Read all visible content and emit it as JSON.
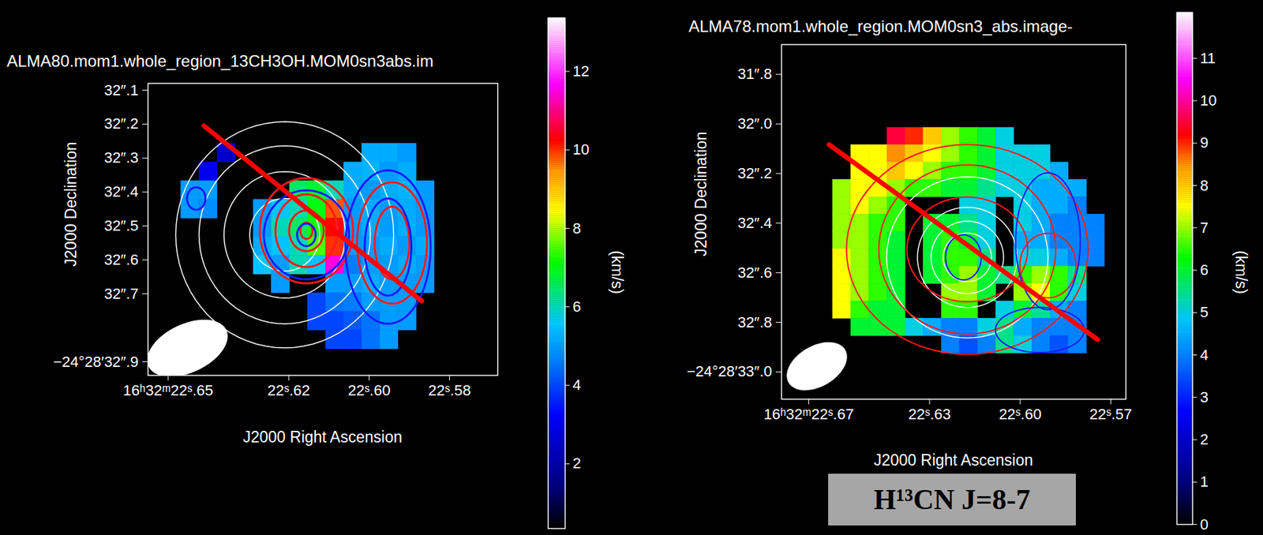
{
  "chart_data": [
    {
      "type": "heatmap",
      "title": "ALMA80.mom1.whole_region_13CH3OH.MOM0sn3abs.im",
      "x_label": "J2000 Right Ascension",
      "y_label": "J2000 Declination",
      "xlim": [
        22.568,
        22.655
      ],
      "xticks": [
        {
          "value": 22.65,
          "label": "16ʰ32ᵐ22ˢ.65"
        },
        {
          "value": 22.62,
          "label": "22ˢ.62"
        },
        {
          "value": 22.6,
          "label": "22ˢ.60"
        },
        {
          "value": 22.58,
          "label": "22ˢ.58"
        }
      ],
      "ylim": [
        32.08,
        32.94
      ],
      "yticks": [
        {
          "value": 32.1,
          "label": "32″.1"
        },
        {
          "value": 32.2,
          "label": "32″.2"
        },
        {
          "value": 32.3,
          "label": "32″.3"
        },
        {
          "value": 32.4,
          "label": "32″.4"
        },
        {
          "value": 32.5,
          "label": "32″.5"
        },
        {
          "value": 32.6,
          "label": "32″.6"
        },
        {
          "value": 32.7,
          "label": "32″.7"
        },
        {
          "value": 32.9,
          "label": "−24°28′32″.9"
        }
      ],
      "cells": {
        "ra_start": 22.6445,
        "ra_step": -0.0045,
        "dec_start": 32.285,
        "dec_step": 0.055,
        "values": [
          [
            null,
            null,
            2.5,
            null,
            null,
            null,
            null,
            null,
            null,
            null,
            5.2,
            5.2,
            5.0,
            null
          ],
          [
            null,
            3.0,
            null,
            null,
            null,
            null,
            null,
            null,
            null,
            5.2,
            5.3,
            5.0,
            5.2,
            null
          ],
          [
            5.0,
            5.0,
            null,
            null,
            null,
            null,
            6.5,
            6.8,
            6.0,
            5.2,
            5.0,
            5.2,
            5.3,
            5.0
          ],
          [
            5.0,
            4.8,
            null,
            null,
            5.0,
            5.5,
            6.0,
            7.0,
            9.8,
            5.0,
            5.2,
            5.0,
            5.2,
            5.0
          ],
          [
            null,
            null,
            null,
            null,
            5.0,
            6.0,
            6.5,
            7.2,
            10.2,
            5.0,
            5.2,
            5.0,
            5.2,
            5.0
          ],
          [
            null,
            null,
            null,
            null,
            5.2,
            5.5,
            6.0,
            7.5,
            10.0,
            5.0,
            5.0,
            5.2,
            5.0,
            5.2
          ],
          [
            null,
            null,
            null,
            null,
            5.5,
            5.0,
            6.0,
            5.5,
            11.5,
            4.6,
            5.0,
            5.0,
            5.2,
            5.0
          ],
          [
            null,
            null,
            null,
            null,
            null,
            5.0,
            null,
            null,
            5.0,
            5.0,
            5.2,
            5.0,
            5.0,
            5.0
          ],
          [
            null,
            null,
            null,
            null,
            null,
            null,
            null,
            4.0,
            4.5,
            4.6,
            5.0,
            5.0,
            5.0,
            null
          ],
          [
            null,
            null,
            null,
            null,
            null,
            null,
            null,
            4.0,
            4.0,
            4.2,
            4.5,
            5.0,
            5.0,
            null
          ],
          [
            null,
            null,
            null,
            null,
            null,
            null,
            null,
            null,
            4.0,
            4.0,
            4.5,
            5.0,
            null,
            null
          ]
        ]
      },
      "colorbar": {
        "label": "(km/s)",
        "range": [
          0.35,
          13.36
        ],
        "ticks": [
          2,
          4,
          6,
          8,
          10,
          12
        ]
      },
      "contours": [
        {
          "color": "#ffffff",
          "center": [
            22.621,
            32.526
          ],
          "rx": [
            0.0271,
            0.0213,
            0.0151,
            0.0087
          ],
          "ry": [
            0.333,
            0.262,
            0.186,
            0.107
          ]
        },
        {
          "color": "#ff1a1a",
          "center": [
            22.6156,
            32.514
          ],
          "rx": [
            0.0116,
            0.0077,
            0.0043,
            0.0015
          ],
          "ry": [
            0.155,
            0.107,
            0.06,
            0.024
          ]
        },
        {
          "color": "#1a1aff",
          "center": [
            22.6156,
            32.526
          ],
          "rx": [
            0.0106,
            0.0023
          ],
          "ry": [
            0.131,
            0.033
          ]
        },
        {
          "color": "#ff1a1a",
          "center": [
            22.5943,
            32.55
          ],
          "rx": [
            0.0087,
            0.0043
          ],
          "ry": [
            0.179,
            0.107
          ]
        },
        {
          "color": "#1a1aff",
          "center": [
            22.5953,
            32.562
          ],
          "rx": [
            0.0106,
            0.0058
          ],
          "ry": [
            0.226,
            0.143
          ]
        },
        {
          "color": "#1a1aff",
          "center": [
            22.643,
            32.419
          ],
          "rx": [
            0.0023
          ],
          "ry": [
            0.033
          ]
        }
      ],
      "axis_line": {
        "color": "#ff0000",
        "ra": [
          22.6411,
          22.5869
        ],
        "dec": [
          32.205,
          32.721
        ]
      },
      "beam": {
        "ra": 22.6452,
        "dec": 32.86,
        "major": 0.25,
        "minor": 0.14,
        "pa": -65
      }
    },
    {
      "type": "heatmap",
      "title": "ALMA78.mom1.whole_region.MOM0sn3_abs.image-",
      "x_label": "J2000 Right Ascension",
      "y_label": "J2000 Declination",
      "annotation": "H¹³CN J=8-7",
      "xlim": [
        22.565,
        22.679
      ],
      "xticks": [
        {
          "value": 22.67,
          "label": "16ʰ32ᵐ22ˢ.67"
        },
        {
          "value": 22.63,
          "label": "22ˢ.63"
        },
        {
          "value": 22.6,
          "label": "22ˢ.60"
        },
        {
          "value": 22.57,
          "label": "22ˢ.57"
        }
      ],
      "ylim": [
        31.68,
        33.11
      ],
      "yticks": [
        {
          "value": 31.8,
          "label": "31″.8"
        },
        {
          "value": 32.0,
          "label": "32″.0"
        },
        {
          "value": 32.2,
          "label": "32″.2"
        },
        {
          "value": 32.4,
          "label": "32″.4"
        },
        {
          "value": 32.6,
          "label": "32″.6"
        },
        {
          "value": 32.8,
          "label": "32″.8"
        },
        {
          "value": 33.0,
          "label": "−24°28′33″.0"
        }
      ],
      "cells": {
        "ra_start": 22.659,
        "ra_step": -0.006,
        "dec_start": 32.05,
        "dec_step": 0.07,
        "values": [
          [
            null,
            null,
            null,
            9.5,
            9,
            8,
            7,
            6.5,
            6,
            5,
            null,
            null,
            null,
            null,
            null
          ],
          [
            null,
            7.5,
            7.5,
            8.5,
            8,
            7.5,
            7,
            6.5,
            6,
            5,
            5,
            5,
            null,
            null,
            null
          ],
          [
            null,
            7.5,
            7.5,
            8,
            7.5,
            7,
            6.5,
            6.5,
            6,
            5,
            5,
            5,
            4.5,
            null,
            null
          ],
          [
            7,
            7.5,
            7.5,
            7,
            6.5,
            6.5,
            6,
            6,
            5.5,
            5,
            5,
            4.5,
            4.5,
            4.5,
            null
          ],
          [
            7,
            7.5,
            7,
            6.5,
            null,
            null,
            null,
            5,
            5,
            null,
            5,
            4.5,
            4.5,
            4,
            null
          ],
          [
            7,
            7,
            6.5,
            6.5,
            null,
            6,
            6,
            5.5,
            5,
            null,
            5,
            4.5,
            4,
            4,
            4
          ],
          [
            7,
            7,
            6.5,
            6,
            null,
            6,
            6.5,
            6,
            5,
            null,
            4.5,
            4.5,
            4,
            4,
            4
          ],
          [
            7.5,
            7,
            6.5,
            6,
            null,
            6,
            6.5,
            6.5,
            5.5,
            null,
            5,
            5,
            4.5,
            4,
            4
          ],
          [
            7.5,
            7,
            6.5,
            6,
            null,
            6,
            6.5,
            7,
            6,
            5.5,
            6.5,
            7,
            6.5,
            5.5,
            null
          ],
          [
            7.5,
            7,
            6.5,
            6,
            null,
            null,
            7,
            7,
            6,
            null,
            7,
            7.5,
            6.5,
            5,
            null
          ],
          [
            7.5,
            6.5,
            6,
            6,
            null,
            null,
            6.5,
            6.5,
            null,
            5,
            6,
            5.5,
            4.5,
            4,
            null
          ],
          [
            null,
            6,
            6,
            6,
            5,
            4.5,
            4,
            4,
            5,
            5.5,
            4.5,
            4,
            4,
            4,
            null
          ],
          [
            null,
            null,
            null,
            null,
            null,
            null,
            4,
            3.5,
            4,
            5.5,
            5,
            4,
            3.5,
            4,
            null
          ]
        ]
      },
      "colorbar": {
        "label": "(km/s)",
        "range": [
          0,
          12.08
        ],
        "ticks": [
          0,
          1,
          2,
          3,
          4,
          5,
          6,
          7,
          8,
          9,
          10,
          11
        ]
      },
      "contours": [
        {
          "color": "#ffffff",
          "center": [
            22.6175,
            32.538
          ],
          "rx": [
            0.0267,
            0.0165,
            0.012,
            0.008
          ],
          "ry": [
            0.325,
            0.202,
            0.146,
            0.098
          ]
        },
        {
          "color": "#ff1a1a",
          "center": [
            22.6175,
            32.506
          ],
          "rx": [
            0.04,
            0.0293,
            0.02
          ],
          "ry": [
            0.423,
            0.341,
            0.211
          ]
        },
        {
          "color": "#ff1a1a",
          "center": [
            22.5908,
            32.571
          ],
          "rx": [
            0.0093
          ],
          "ry": [
            0.13
          ]
        },
        {
          "color": "#1a1aff",
          "center": [
            22.6188,
            32.538
          ],
          "rx": [
            0.0059
          ],
          "ry": [
            0.091
          ]
        },
        {
          "color": "#1a1aff",
          "center": [
            22.5908,
            32.473
          ],
          "rx": [
            0.0107
          ],
          "ry": [
            0.276
          ]
        },
        {
          "color": "#1a1aff",
          "center": [
            22.5935,
            32.831
          ],
          "rx": [
            0.0147
          ],
          "ry": [
            0.091
          ]
        }
      ],
      "axis_line": {
        "color": "#ff0000",
        "ra": [
          22.6633,
          22.5743
        ],
        "dec": [
          32.083,
          32.87
        ]
      },
      "beam": {
        "ra": 22.6673,
        "dec": 32.977,
        "major": 0.26,
        "minor": 0.16,
        "pa": -60
      }
    }
  ]
}
